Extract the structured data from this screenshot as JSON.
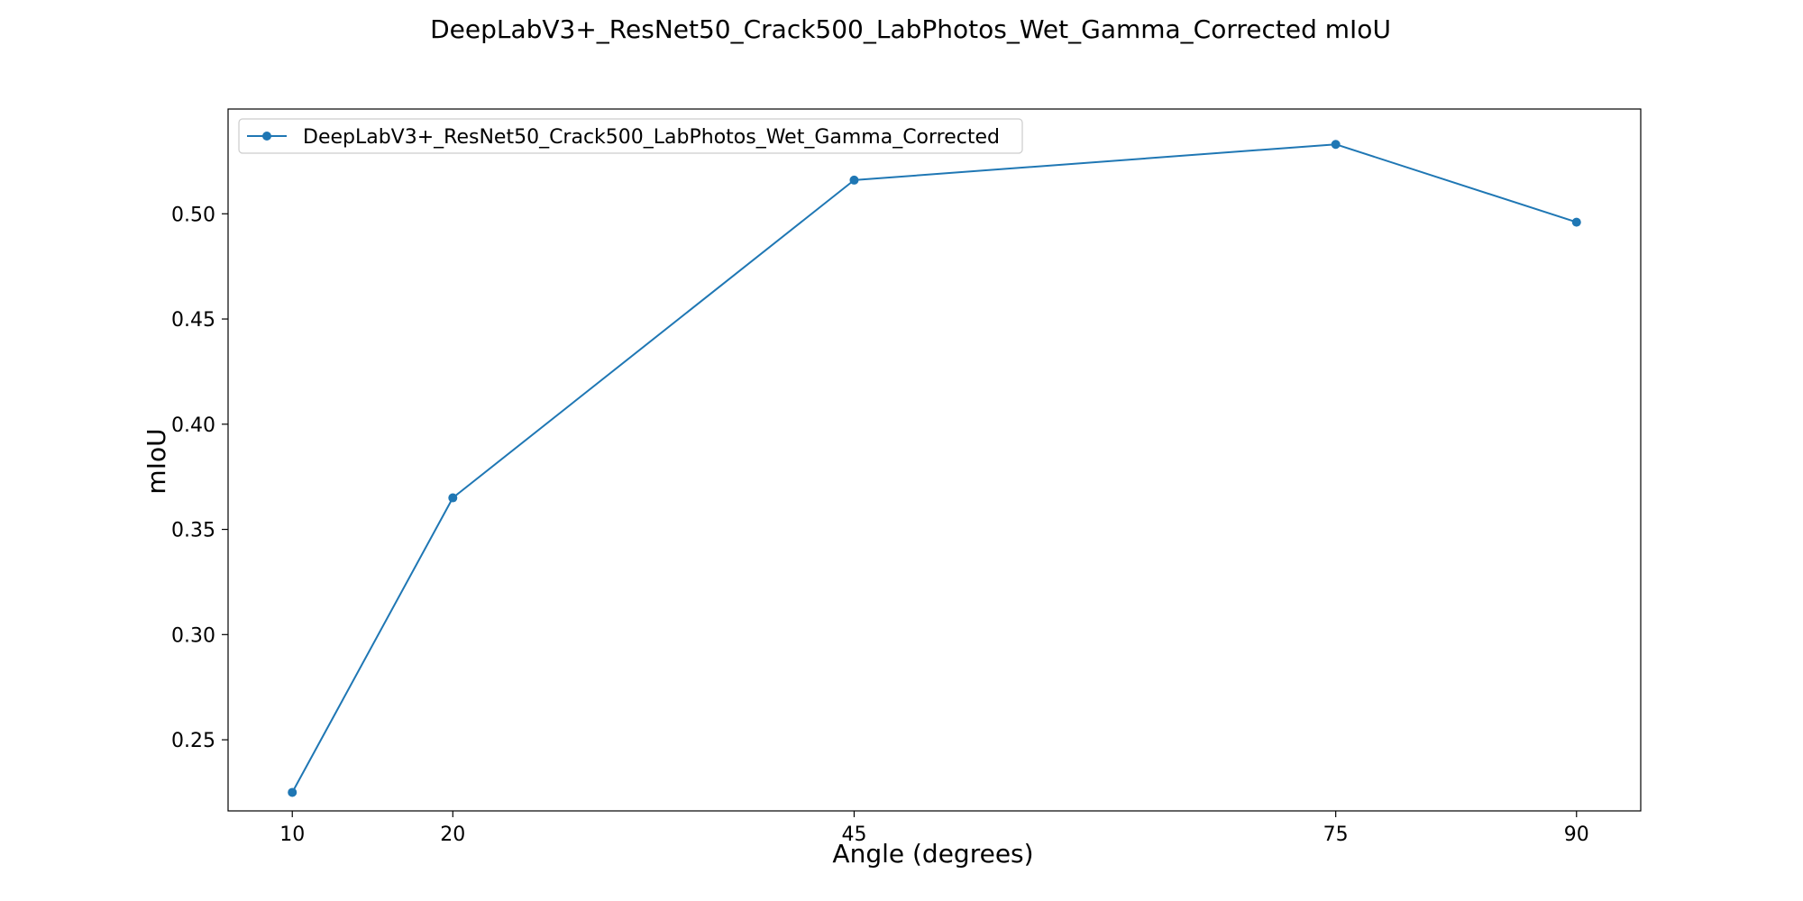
{
  "chart_data": {
    "type": "line",
    "title": "DeepLabV3+_ResNet50_Crack500_LabPhotos_Wet_Gamma_Corrected mIoU",
    "xlabel": "Angle (degrees)",
    "ylabel": "mIoU",
    "x": [
      10,
      20,
      45,
      75,
      90
    ],
    "x_ticks": [
      "10",
      "20",
      "45",
      "75",
      "90"
    ],
    "xlim": [
      6,
      94
    ],
    "y_ticks": [
      "0.25",
      "0.30",
      "0.35",
      "0.40",
      "0.45",
      "0.50"
    ],
    "ylim": [
      0.2162,
      0.5498
    ],
    "grid": false,
    "legend_position": "top-left",
    "series": [
      {
        "name": "DeepLabV3+_ResNet50_Crack500_LabPhotos_Wet_Gamma_Corrected",
        "values": [
          0.225,
          0.365,
          0.516,
          0.533,
          0.496
        ],
        "color": "#1f77b4",
        "marker": "circle"
      }
    ]
  }
}
